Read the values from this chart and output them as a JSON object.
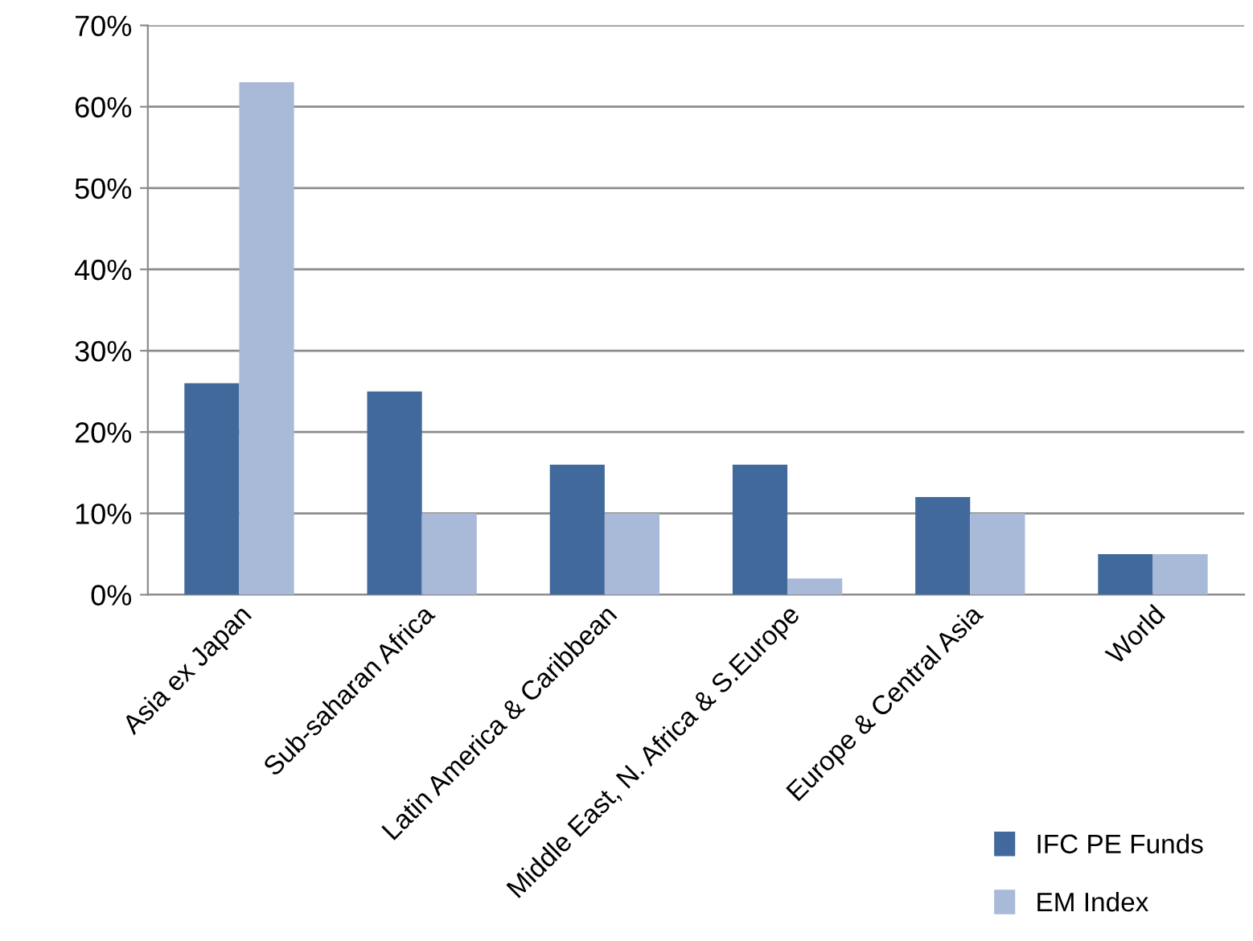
{
  "chart_data": {
    "type": "bar",
    "categories": [
      "Asia ex Japan",
      "Sub-saharan Africa",
      "Latin America & Caribbean",
      "Middle East, N. Africa & S.Europe",
      "Europe & Central Asia",
      "World"
    ],
    "series": [
      {
        "name": "IFC PE Funds",
        "color": "#41699c",
        "values": [
          26,
          25,
          16,
          16,
          12,
          5
        ]
      },
      {
        "name": "EM Index",
        "color": "#a9b9d8",
        "values": [
          63,
          10,
          10,
          2,
          10,
          5
        ]
      }
    ],
    "ylim": [
      0,
      70
    ],
    "yticks": [
      {
        "value": 0,
        "label": "0%"
      },
      {
        "value": 10,
        "label": "10%"
      },
      {
        "value": 20,
        "label": "20%"
      },
      {
        "value": 30,
        "label": "30%"
      },
      {
        "value": 40,
        "label": "40%"
      },
      {
        "value": 50,
        "label": "50%"
      },
      {
        "value": 60,
        "label": "60%"
      },
      {
        "value": 70,
        "label": "70%"
      }
    ],
    "grid": "y",
    "legend": "bottom right"
  }
}
